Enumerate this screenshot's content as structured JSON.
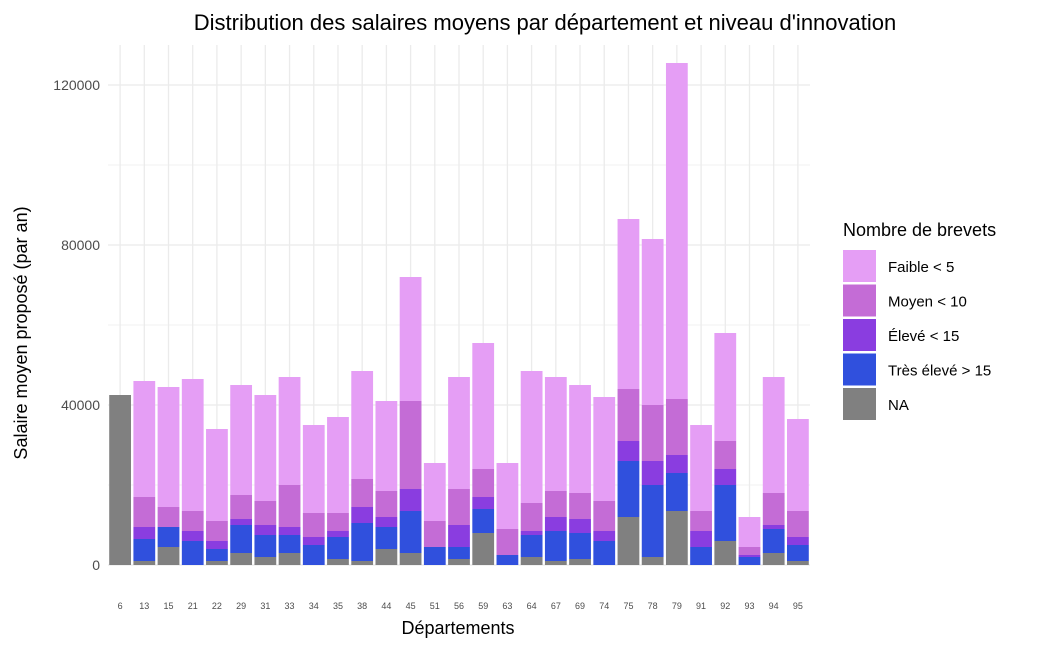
{
  "chart_data": {
    "type": "bar",
    "stacked": true,
    "title": "Distribution des salaires moyens par département et niveau d'innovation",
    "xlabel": "Départements",
    "ylabel": "Salaire moyen proposé (par an)",
    "ylim": [
      0,
      130000
    ],
    "yticks": [
      0,
      40000,
      80000,
      120000
    ],
    "ytick_labels": [
      "0",
      "40000",
      "80000",
      "120000"
    ],
    "grid": true,
    "legend_position": "right",
    "legend_title": "Nombre de brevets",
    "categories": [
      "6",
      "13",
      "15",
      "21",
      "22",
      "29",
      "31",
      "33",
      "34",
      "35",
      "38",
      "44",
      "45",
      "51",
      "56",
      "59",
      "63",
      "64",
      "67",
      "69",
      "74",
      "75",
      "78",
      "79",
      "91",
      "92",
      "93",
      "94",
      "95"
    ],
    "series": [
      {
        "name": "Faible < 5",
        "color": "#E59EF5",
        "values": [
          0,
          29000,
          30000,
          33000,
          23000,
          27500,
          26500,
          27000,
          22000,
          24000,
          27000,
          22500,
          31000,
          14500,
          28000,
          31500,
          16500,
          33000,
          28500,
          27000,
          26000,
          42500,
          41500,
          84000,
          21500,
          27000,
          7500,
          29000,
          23000
        ]
      },
      {
        "name": "Moyen < 10",
        "color": "#C46CD6",
        "values": [
          0,
          7500,
          5000,
          5000,
          5000,
          6000,
          6000,
          10500,
          6000,
          4500,
          7000,
          6500,
          22000,
          6500,
          9000,
          7000,
          6500,
          7000,
          6500,
          6500,
          7500,
          13000,
          14000,
          14000,
          5000,
          7000,
          2000,
          8000,
          6500
        ]
      },
      {
        "name": "Élevé < 15",
        "color": "#8A3DE0",
        "values": [
          0,
          3000,
          0,
          2500,
          2000,
          1500,
          2500,
          2000,
          2000,
          1500,
          4000,
          2500,
          5500,
          0,
          5500,
          3000,
          0,
          1000,
          3500,
          3500,
          2500,
          5000,
          6000,
          4500,
          4000,
          4000,
          500,
          1000,
          2000
        ]
      },
      {
        "name": "Très élevé > 15",
        "color": "#3050DD",
        "values": [
          0,
          5500,
          5000,
          6000,
          3000,
          7000,
          5500,
          4500,
          5000,
          5500,
          9500,
          5500,
          10500,
          4500,
          3000,
          6000,
          2500,
          5500,
          7500,
          6500,
          6000,
          14000,
          18000,
          9500,
          4500,
          14000,
          2000,
          6000,
          4000
        ]
      },
      {
        "name": "NA",
        "color": "#808080",
        "values": [
          42500,
          1000,
          4500,
          0,
          1000,
          3000,
          2000,
          3000,
          0,
          1500,
          1000,
          4000,
          3000,
          0,
          1500,
          8000,
          0,
          2000,
          1000,
          1500,
          0,
          12000,
          2000,
          13500,
          0,
          6000,
          0,
          3000,
          1000
        ]
      }
    ]
  }
}
